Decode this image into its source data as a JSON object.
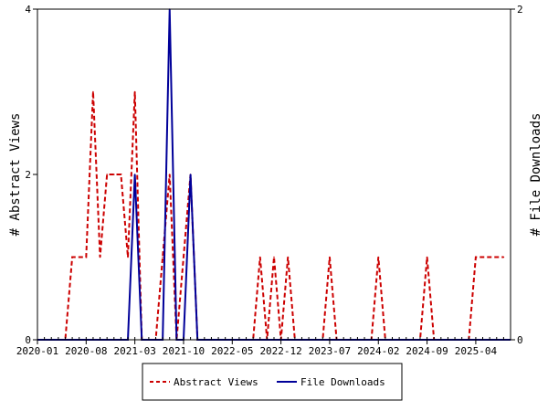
{
  "chart_data": {
    "type": "line",
    "ylabel_left": "# Abstract Views",
    "ylabel_right": "# File Downloads",
    "xlim": [
      "2020-01",
      "2025-09"
    ],
    "ylim_left": [
      0,
      4
    ],
    "ylim_right": [
      0,
      2
    ],
    "x_ticks": [
      "2020-01",
      "2020-08",
      "2021-03",
      "2021-10",
      "2022-05",
      "2022-12",
      "2023-07",
      "2024-02",
      "2024-09",
      "2025-04"
    ],
    "y_ticks_left": [
      0,
      2,
      4
    ],
    "y_ticks_right": [
      0,
      2
    ],
    "grid": false,
    "legend_position": "bottom",
    "series": [
      {
        "name": "Abstract Views",
        "axis": "left",
        "color": "#cc0000",
        "style": "dashed",
        "points": [
          [
            "2020-01",
            0
          ],
          [
            "2020-05",
            0
          ],
          [
            "2020-06",
            1
          ],
          [
            "2020-07",
            1
          ],
          [
            "2020-08",
            1
          ],
          [
            "2020-09",
            3
          ],
          [
            "2020-10",
            1
          ],
          [
            "2020-11",
            2
          ],
          [
            "2020-12",
            2
          ],
          [
            "2021-01",
            2
          ],
          [
            "2021-02",
            1
          ],
          [
            "2021-03",
            3
          ],
          [
            "2021-04",
            0
          ],
          [
            "2021-05",
            0
          ],
          [
            "2021-06",
            0
          ],
          [
            "2021-07",
            1
          ],
          [
            "2021-08",
            2
          ],
          [
            "2021-09",
            0
          ],
          [
            "2021-10",
            1
          ],
          [
            "2021-11",
            2
          ],
          [
            "2021-12",
            0
          ],
          [
            "2022-01",
            0
          ],
          [
            "2022-08",
            0
          ],
          [
            "2022-09",
            1
          ],
          [
            "2022-10",
            0
          ],
          [
            "2022-11",
            1
          ],
          [
            "2022-12",
            0
          ],
          [
            "2023-01",
            1
          ],
          [
            "2023-02",
            0
          ],
          [
            "2023-06",
            0
          ],
          [
            "2023-07",
            1
          ],
          [
            "2023-08",
            0
          ],
          [
            "2024-01",
            0
          ],
          [
            "2024-02",
            1
          ],
          [
            "2024-03",
            0
          ],
          [
            "2024-08",
            0
          ],
          [
            "2024-09",
            1
          ],
          [
            "2024-10",
            0
          ],
          [
            "2025-03",
            0
          ],
          [
            "2025-04",
            1
          ],
          [
            "2025-05",
            1
          ],
          [
            "2025-06",
            1
          ],
          [
            "2025-07",
            1
          ],
          [
            "2025-08",
            1
          ]
        ]
      },
      {
        "name": "File Downloads",
        "axis": "right",
        "color": "#000099",
        "style": "solid",
        "points": [
          [
            "2020-01",
            0
          ],
          [
            "2021-02",
            0
          ],
          [
            "2021-03",
            1
          ],
          [
            "2021-04",
            0
          ],
          [
            "2021-07",
            0
          ],
          [
            "2021-08",
            2
          ],
          [
            "2021-09",
            0
          ],
          [
            "2021-10",
            0
          ],
          [
            "2021-11",
            1
          ],
          [
            "2021-12",
            0
          ],
          [
            "2025-09",
            0
          ]
        ]
      }
    ]
  }
}
